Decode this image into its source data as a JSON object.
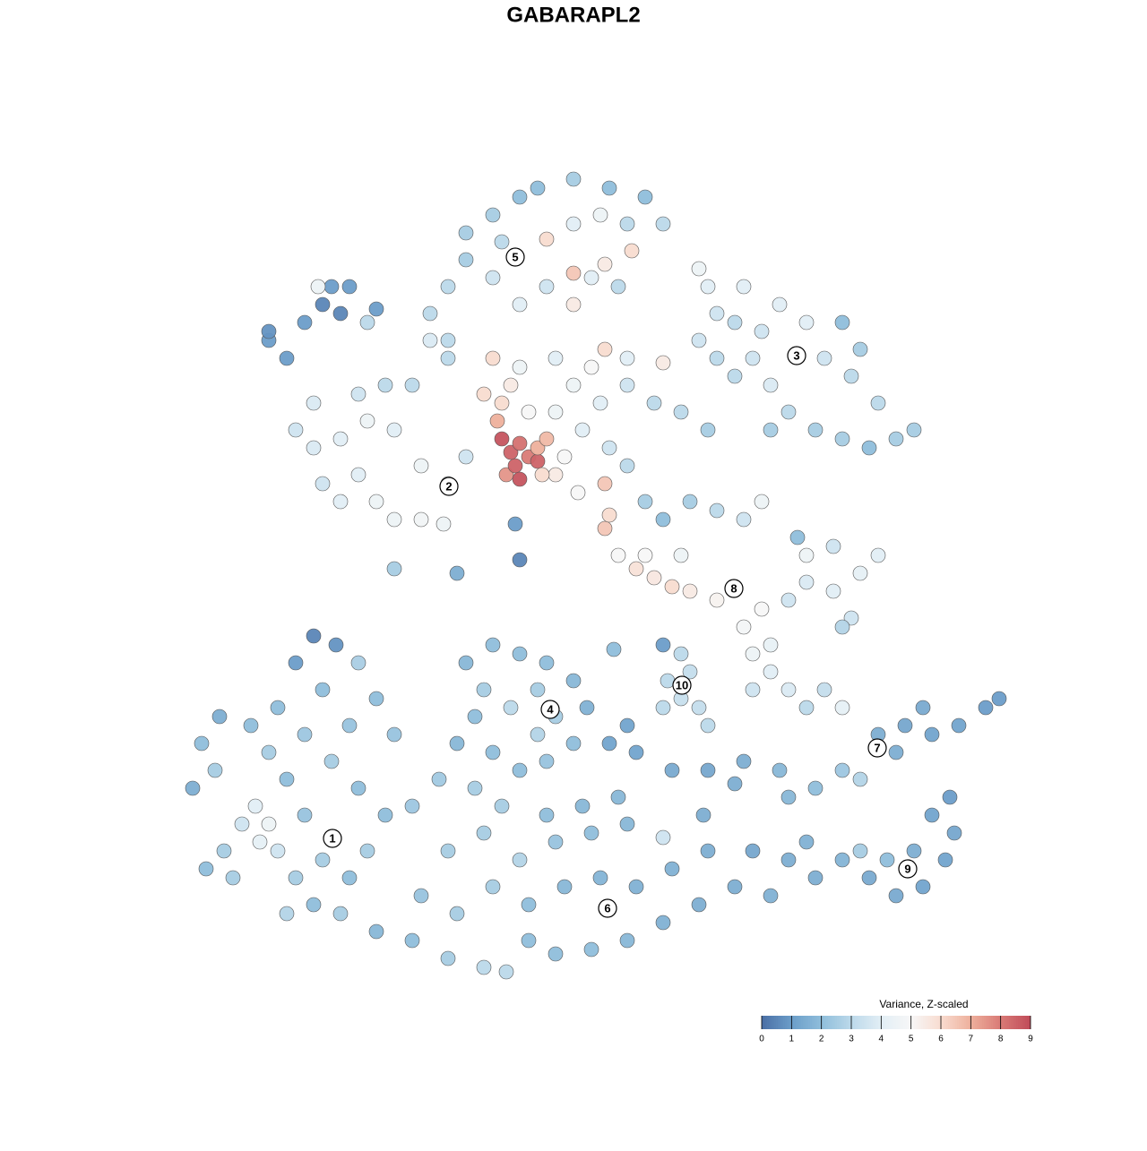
{
  "chart_data": {
    "type": "scatter",
    "title": "GABARAPL2",
    "xlim": [
      0,
      1280
    ],
    "ylim": [
      1280,
      0
    ],
    "point_stroke": "#555555",
    "colorbar": {
      "title": "Variance, Z-scaled",
      "ticks": [
        0,
        1,
        2,
        3,
        4,
        5,
        6,
        7,
        8,
        9
      ],
      "colors": [
        "#4a6fa5",
        "#6b9dc9",
        "#8fbedb",
        "#bcd9ea",
        "#e2eef5",
        "#f7f7f7",
        "#f8dcd0",
        "#eeb09c",
        "#d97a76",
        "#c04b59"
      ]
    },
    "clusters": [
      {
        "label": "1",
        "x": 371,
        "y": 344
      },
      {
        "label": "2",
        "x": 501,
        "y": 737
      },
      {
        "label": "3",
        "x": 889,
        "y": 883
      },
      {
        "label": "4",
        "x": 614,
        "y": 488
      },
      {
        "label": "5",
        "x": 575,
        "y": 993
      },
      {
        "label": "6",
        "x": 678,
        "y": 266
      },
      {
        "label": "7",
        "x": 979,
        "y": 445
      },
      {
        "label": "8",
        "x": 819,
        "y": 623
      },
      {
        "label": "9",
        "x": 1013,
        "y": 310
      },
      {
        "label": "10",
        "x": 761,
        "y": 515
      }
    ],
    "points": [
      [
        230,
        310,
        2
      ],
      [
        250,
        330,
        2.5
      ],
      [
        215,
        400,
        1.5
      ],
      [
        240,
        420,
        2.5
      ],
      [
        270,
        360,
        3.5
      ],
      [
        290,
        340,
        4.2
      ],
      [
        300,
        360,
        4.5
      ],
      [
        285,
        380,
        4
      ],
      [
        310,
        330,
        3.5
      ],
      [
        330,
        300,
        2.5
      ],
      [
        350,
        270,
        2
      ],
      [
        380,
        260,
        2.5
      ],
      [
        360,
        320,
        2.5
      ],
      [
        340,
        370,
        2.2
      ],
      [
        320,
        410,
        2
      ],
      [
        300,
        440,
        2.5
      ],
      [
        280,
        470,
        2
      ],
      [
        310,
        490,
        2
      ],
      [
        340,
        460,
        2.3
      ],
      [
        370,
        430,
        2.5
      ],
      [
        400,
        400,
        2
      ],
      [
        390,
        470,
        2.2
      ],
      [
        360,
        510,
        2
      ],
      [
        330,
        540,
        1
      ],
      [
        350,
        570,
        0.5
      ],
      [
        375,
        560,
        0.8
      ],
      [
        400,
        540,
        2.6
      ],
      [
        420,
        500,
        2
      ],
      [
        440,
        460,
        2.2
      ],
      [
        430,
        370,
        2
      ],
      [
        410,
        330,
        2.5
      ],
      [
        390,
        300,
        2
      ],
      [
        320,
        260,
        2.8
      ],
      [
        260,
        300,
        2.5
      ],
      [
        225,
        450,
        2
      ],
      [
        245,
        480,
        1.5
      ],
      [
        420,
        240,
        1.8
      ],
      [
        460,
        230,
        2
      ],
      [
        500,
        210,
        2.5
      ],
      [
        540,
        200,
        3
      ],
      [
        565,
        195,
        3
      ],
      [
        590,
        230,
        2
      ],
      [
        620,
        215,
        2
      ],
      [
        660,
        220,
        2
      ],
      [
        700,
        230,
        1.8
      ],
      [
        740,
        250,
        1.6
      ],
      [
        780,
        270,
        1.5
      ],
      [
        820,
        290,
        1.5
      ],
      [
        840,
        330,
        1.3
      ],
      [
        470,
        280,
        2.2
      ],
      [
        510,
        260,
        2.5
      ],
      [
        550,
        290,
        2.5
      ],
      [
        590,
        270,
        2
      ],
      [
        630,
        290,
        1.8
      ],
      [
        670,
        300,
        1.7
      ],
      [
        710,
        290,
        1.6
      ],
      [
        750,
        310,
        1.6
      ],
      [
        790,
        330,
        1.5
      ],
      [
        500,
        330,
        2.5
      ],
      [
        540,
        350,
        2.5
      ],
      [
        580,
        320,
        2.8
      ],
      [
        620,
        340,
        2.2
      ],
      [
        660,
        350,
        2
      ],
      [
        700,
        360,
        1.8
      ],
      [
        690,
        390,
        1.8
      ],
      [
        460,
        380,
        2.3
      ],
      [
        490,
        410,
        2.4
      ],
      [
        530,
        400,
        2.5
      ],
      [
        560,
        380,
        2.5
      ],
      [
        610,
        370,
        2
      ],
      [
        650,
        380,
        1.8
      ],
      [
        510,
        450,
        1.8
      ],
      [
        530,
        480,
        2
      ],
      [
        550,
        440,
        2
      ],
      [
        580,
        420,
        2
      ],
      [
        610,
        430,
        2.2
      ],
      [
        640,
        450,
        2
      ],
      [
        600,
        460,
        2.8
      ],
      [
        570,
        490,
        3
      ],
      [
        540,
        510,
        2.5
      ],
      [
        520,
        540,
        1.8
      ],
      [
        550,
        560,
        2
      ],
      [
        580,
        550,
        2
      ],
      [
        610,
        540,
        2
      ],
      [
        640,
        520,
        1.8
      ],
      [
        655,
        490,
        1.6
      ],
      [
        600,
        510,
        2.5
      ],
      [
        620,
        480,
        2.5
      ],
      [
        880,
        320,
        1.5
      ],
      [
        910,
        300,
        1.5
      ],
      [
        940,
        320,
        1.7
      ],
      [
        970,
        300,
        1.4
      ],
      [
        1000,
        280,
        1.4
      ],
      [
        1030,
        290,
        1.2
      ],
      [
        1055,
        320,
        1.2
      ],
      [
        1065,
        350,
        1.3
      ],
      [
        960,
        330,
        2.5
      ],
      [
        990,
        320,
        2
      ],
      [
        1020,
        330,
        1.5
      ],
      [
        1040,
        370,
        1.2
      ],
      [
        1060,
        390,
        1
      ],
      [
        900,
        340,
        1.6
      ],
      [
        860,
        280,
        1.6
      ],
      [
        680,
        450,
        1.2
      ],
      [
        710,
        440,
        1.2
      ],
      [
        750,
        420,
        1.4
      ],
      [
        790,
        420,
        1.3
      ],
      [
        830,
        430,
        1.5
      ],
      [
        870,
        420,
        1.8
      ],
      [
        880,
        390,
        1.8
      ],
      [
        910,
        400,
        2
      ],
      [
        940,
        420,
        2.3
      ],
      [
        960,
        410,
        2.8
      ],
      [
        980,
        460,
        1.5
      ],
      [
        1010,
        470,
        1.3
      ],
      [
        1040,
        460,
        1.2
      ],
      [
        1070,
        470,
        1.2
      ],
      [
        1100,
        490,
        1
      ],
      [
        1115,
        500,
        1
      ],
      [
        700,
        470,
        1.2
      ],
      [
        1000,
        440,
        1.5
      ],
      [
        1030,
        490,
        1.4
      ],
      [
        740,
        490,
        3
      ],
      [
        760,
        500,
        3.3
      ],
      [
        780,
        490,
        3.2
      ],
      [
        745,
        520,
        3
      ],
      [
        770,
        530,
        3.2
      ],
      [
        760,
        550,
        3
      ],
      [
        790,
        470,
        3
      ],
      [
        740,
        560,
        1
      ],
      [
        840,
        510,
        3.5
      ],
      [
        860,
        530,
        4
      ],
      [
        880,
        510,
        3.8
      ],
      [
        900,
        490,
        3
      ],
      [
        920,
        510,
        3.2
      ],
      [
        940,
        490,
        4.2
      ],
      [
        840,
        550,
        4.5
      ],
      [
        860,
        560,
        4.3
      ],
      [
        830,
        580,
        4.8
      ],
      [
        850,
        600,
        5
      ],
      [
        800,
        610,
        5.2
      ],
      [
        770,
        620,
        5.5
      ],
      [
        750,
        625,
        6
      ],
      [
        730,
        635,
        5.6
      ],
      [
        710,
        645,
        5.8
      ],
      [
        690,
        660,
        5
      ],
      [
        720,
        660,
        5
      ],
      [
        760,
        660,
        4.5
      ],
      [
        880,
        610,
        3.5
      ],
      [
        900,
        630,
        3.8
      ],
      [
        930,
        620,
        4
      ],
      [
        960,
        640,
        4.2
      ],
      [
        980,
        660,
        4
      ],
      [
        900,
        660,
        4.5
      ],
      [
        930,
        670,
        3.5
      ],
      [
        890,
        680,
        2
      ],
      [
        950,
        590,
        3.5
      ],
      [
        940,
        580,
        2.8
      ],
      [
        330,
        800,
        3.5
      ],
      [
        350,
        780,
        3.8
      ],
      [
        360,
        740,
        3.5
      ],
      [
        380,
        720,
        4
      ],
      [
        400,
        750,
        4
      ],
      [
        420,
        720,
        4.5
      ],
      [
        440,
        700,
        4.5
      ],
      [
        470,
        700,
        4.7
      ],
      [
        495,
        695,
        4.5
      ],
      [
        380,
        790,
        4
      ],
      [
        410,
        810,
        4.5
      ],
      [
        440,
        800,
        4
      ],
      [
        350,
        830,
        3.8
      ],
      [
        400,
        840,
        3.5
      ],
      [
        430,
        850,
        3
      ],
      [
        470,
        760,
        4.5
      ],
      [
        500,
        740,
        4
      ],
      [
        520,
        770,
        3.5
      ],
      [
        460,
        850,
        3
      ],
      [
        540,
        840,
        6
      ],
      [
        560,
        830,
        6
      ],
      [
        570,
        850,
        5.5
      ],
      [
        590,
        820,
        5
      ],
      [
        620,
        820,
        4.5
      ],
      [
        650,
        800,
        4
      ],
      [
        680,
        780,
        3.5
      ],
      [
        700,
        760,
        3
      ],
      [
        720,
        720,
        2.5
      ],
      [
        740,
        700,
        2
      ],
      [
        770,
        720,
        2.5
      ],
      [
        800,
        710,
        3
      ],
      [
        830,
        700,
        3.5
      ],
      [
        850,
        720,
        4.5
      ],
      [
        640,
        850,
        4.5
      ],
      [
        670,
        830,
        4
      ],
      [
        700,
        850,
        3.5
      ],
      [
        730,
        830,
        3
      ],
      [
        760,
        820,
        3
      ],
      [
        790,
        800,
        2.5
      ],
      [
        550,
        880,
        6
      ],
      [
        580,
        870,
        4.5
      ],
      [
        620,
        880,
        4
      ],
      [
        660,
        870,
        5
      ],
      [
        675,
        890,
        6
      ],
      [
        700,
        880,
        4
      ],
      [
        740,
        875,
        5.5
      ],
      [
        500,
        900,
        3
      ],
      [
        480,
        930,
        3
      ],
      [
        500,
        960,
        3
      ],
      [
        520,
        990,
        2.5
      ],
      [
        550,
        970,
        3.5
      ],
      [
        580,
        940,
        4
      ],
      [
        610,
        960,
        3.5
      ],
      [
        640,
        940,
        5.5
      ],
      [
        660,
        970,
        4
      ],
      [
        690,
        960,
        3
      ],
      [
        520,
        1020,
        2.5
      ],
      [
        550,
        1040,
        2.5
      ],
      [
        580,
        1060,
        2
      ],
      [
        610,
        1013,
        6
      ],
      [
        640,
        1030,
        4
      ],
      [
        670,
        1040,
        4.5
      ],
      [
        700,
        1030,
        3
      ],
      [
        720,
        1060,
        2
      ],
      [
        680,
        1070,
        2
      ],
      [
        640,
        1080,
        2.5
      ],
      [
        600,
        1070,
        2
      ],
      [
        560,
        1010,
        3
      ],
      [
        480,
        900,
        3.8
      ],
      [
        500,
        880,
        3
      ],
      [
        640,
        975,
        6.5
      ],
      [
        675,
        985,
        5.5
      ],
      [
        705,
        1000,
        6
      ],
      [
        740,
        1030,
        3
      ],
      [
        780,
        900,
        3.5
      ],
      [
        800,
        930,
        3.5
      ],
      [
        790,
        960,
        4
      ],
      [
        780,
        980,
        4.5
      ],
      [
        820,
        920,
        3
      ],
      [
        840,
        880,
        3.5
      ],
      [
        860,
        850,
        3.8
      ],
      [
        880,
        820,
        3
      ],
      [
        910,
        800,
        2.5
      ],
      [
        940,
        790,
        2.5
      ],
      [
        970,
        780,
        2
      ],
      [
        1000,
        790,
        2.5
      ],
      [
        1020,
        800,
        2.5
      ],
      [
        980,
        830,
        3
      ],
      [
        950,
        860,
        3
      ],
      [
        920,
        880,
        3.5
      ],
      [
        900,
        920,
        4
      ],
      [
        870,
        940,
        4
      ],
      [
        850,
        910,
        3.5
      ],
      [
        960,
        890,
        2.5
      ],
      [
        940,
        920,
        2
      ],
      [
        820,
        860,
        3
      ],
      [
        860,
        800,
        2.5
      ],
      [
        800,
        880,
        3
      ],
      [
        830,
        960,
        4
      ],
      [
        300,
        900,
        1
      ],
      [
        320,
        880,
        1
      ],
      [
        300,
        910,
        0.8
      ],
      [
        340,
        920,
        1
      ],
      [
        360,
        940,
        0.5
      ],
      [
        380,
        930,
        0.5
      ],
      [
        370,
        960,
        1
      ],
      [
        355,
        960,
        4.5
      ],
      [
        390,
        960,
        1
      ],
      [
        410,
        920,
        3
      ],
      [
        420,
        935,
        1
      ],
      [
        510,
        640,
        1.5
      ],
      [
        440,
        645,
        2.5
      ],
      [
        580,
        655,
        0.5
      ],
      [
        575,
        695,
        1
      ],
      [
        685,
        555,
        2
      ],
      [
        740,
        345,
        3.5
      ],
      [
        785,
        370,
        1.5
      ],
      [
        820,
        405,
        1.5
      ],
      [
        565,
        750,
        7.5
      ],
      [
        575,
        760,
        8.5
      ],
      [
        590,
        770,
        8
      ],
      [
        600,
        765,
        8.5
      ],
      [
        570,
        775,
        8.5
      ],
      [
        580,
        785,
        8.2
      ],
      [
        560,
        790,
        8.8
      ],
      [
        600,
        780,
        7
      ],
      [
        610,
        790,
        6.8
      ],
      [
        580,
        745,
        8.8
      ],
      [
        555,
        810,
        7
      ],
      [
        620,
        750,
        5.5
      ],
      [
        630,
        770,
        5
      ],
      [
        605,
        750,
        6
      ],
      [
        675,
        690,
        6.5
      ],
      [
        680,
        705,
        6
      ],
      [
        675,
        740,
        6.5
      ],
      [
        645,
        730,
        5
      ]
    ]
  }
}
